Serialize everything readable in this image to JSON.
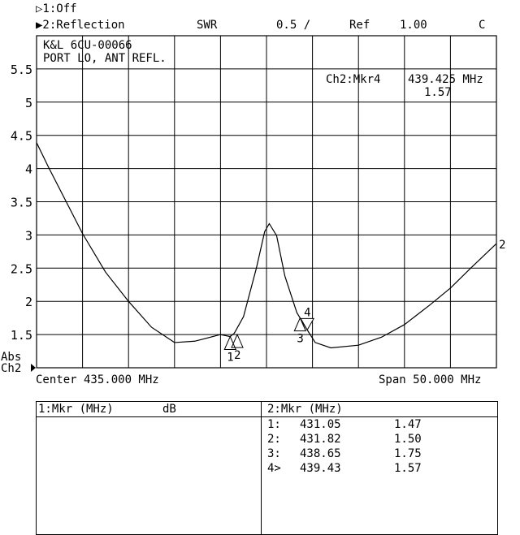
{
  "header": {
    "ch1": "▷1:Off",
    "ch2": "▶2:Reflection",
    "format": "SWR",
    "scale": "0.5 /",
    "ref_label": "Ref",
    "ref_value": "1.00",
    "cal": "C"
  },
  "annotation": {
    "line1": "K&L 6CU-00066",
    "line2": "PORT LO, ANT REFL."
  },
  "active_marker": {
    "label": "Ch2:Mkr4",
    "freq": "439.425 MHz",
    "value": "1.57"
  },
  "axis_side": {
    "abs": "Abs",
    "ch": "Ch2"
  },
  "footer": {
    "center": "Center 435.000 MHz",
    "span": "Span 50.000 MHz"
  },
  "table": {
    "ch1_header": "1:Mkr (MHz)",
    "ch1_unit": "dB",
    "ch2_header": "2:Mkr (MHz)",
    "rows": [
      {
        "id": "1:",
        "freq": "431.05",
        "val": "1.47"
      },
      {
        "id": "2:",
        "freq": "431.82",
        "val": "1.50"
      },
      {
        "id": "3:",
        "freq": "438.65",
        "val": "1.75"
      },
      {
        "id": "4>",
        "freq": "439.43",
        "val": "1.57"
      }
    ]
  },
  "chart_data": {
    "type": "line",
    "xlabel": "",
    "ylabel": "",
    "xlim": [
      410,
      460
    ],
    "ylim": [
      1.0,
      6.0
    ],
    "grid": true,
    "yticks": [
      "1.5",
      "2",
      "2.5",
      "3",
      "3.5",
      "4",
      "4.5",
      "5",
      "5.5"
    ],
    "series": [
      {
        "name": "2",
        "x": [
          410,
          411.3,
          415,
          417.5,
          420,
          422.5,
          425,
          427.2,
          430,
          431.05,
          431.5,
          432.5,
          433.9,
          434.8,
          435.3,
          436.1,
          437,
          438.3,
          438.65,
          439.43,
          440.3,
          442,
          445,
          447.5,
          450,
          452.8,
          455,
          457.2,
          460
        ],
        "y": [
          4.39,
          4.02,
          3.02,
          2.44,
          2.0,
          1.61,
          1.38,
          1.4,
          1.5,
          1.47,
          1.52,
          1.77,
          2.5,
          3.05,
          3.17,
          2.99,
          2.38,
          1.83,
          1.75,
          1.57,
          1.38,
          1.3,
          1.34,
          1.46,
          1.65,
          1.95,
          2.2,
          2.5,
          2.87
        ]
      }
    ],
    "markers": [
      {
        "n": "1",
        "x": 431.05,
        "y": 1.47
      },
      {
        "n": "2",
        "x": 431.82,
        "y": 1.5
      },
      {
        "n": "3",
        "x": 438.65,
        "y": 1.75
      },
      {
        "n": "4",
        "x": 439.43,
        "y": 1.57,
        "active": true
      }
    ],
    "colors": {
      "trace": "#000000",
      "grid": "#000000",
      "background": "#ffffff"
    }
  }
}
